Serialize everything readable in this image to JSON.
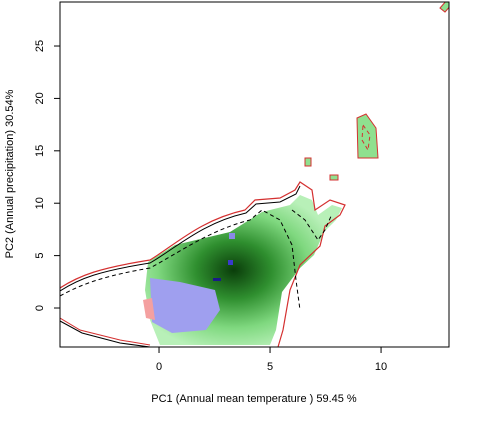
{
  "chart_data": {
    "type": "contour",
    "x_label": "PC1 (Annual mean temperature ) 59.45 %",
    "y_label": "PC2 (Annual precipitation) 30.54%",
    "xlim": [
      -4.46,
      13.06
    ],
    "ylim": [
      -3.72,
      29.2
    ],
    "xticks": [
      0,
      5,
      10
    ],
    "yticks": [
      0,
      5,
      10,
      15,
      20,
      25
    ]
  }
}
